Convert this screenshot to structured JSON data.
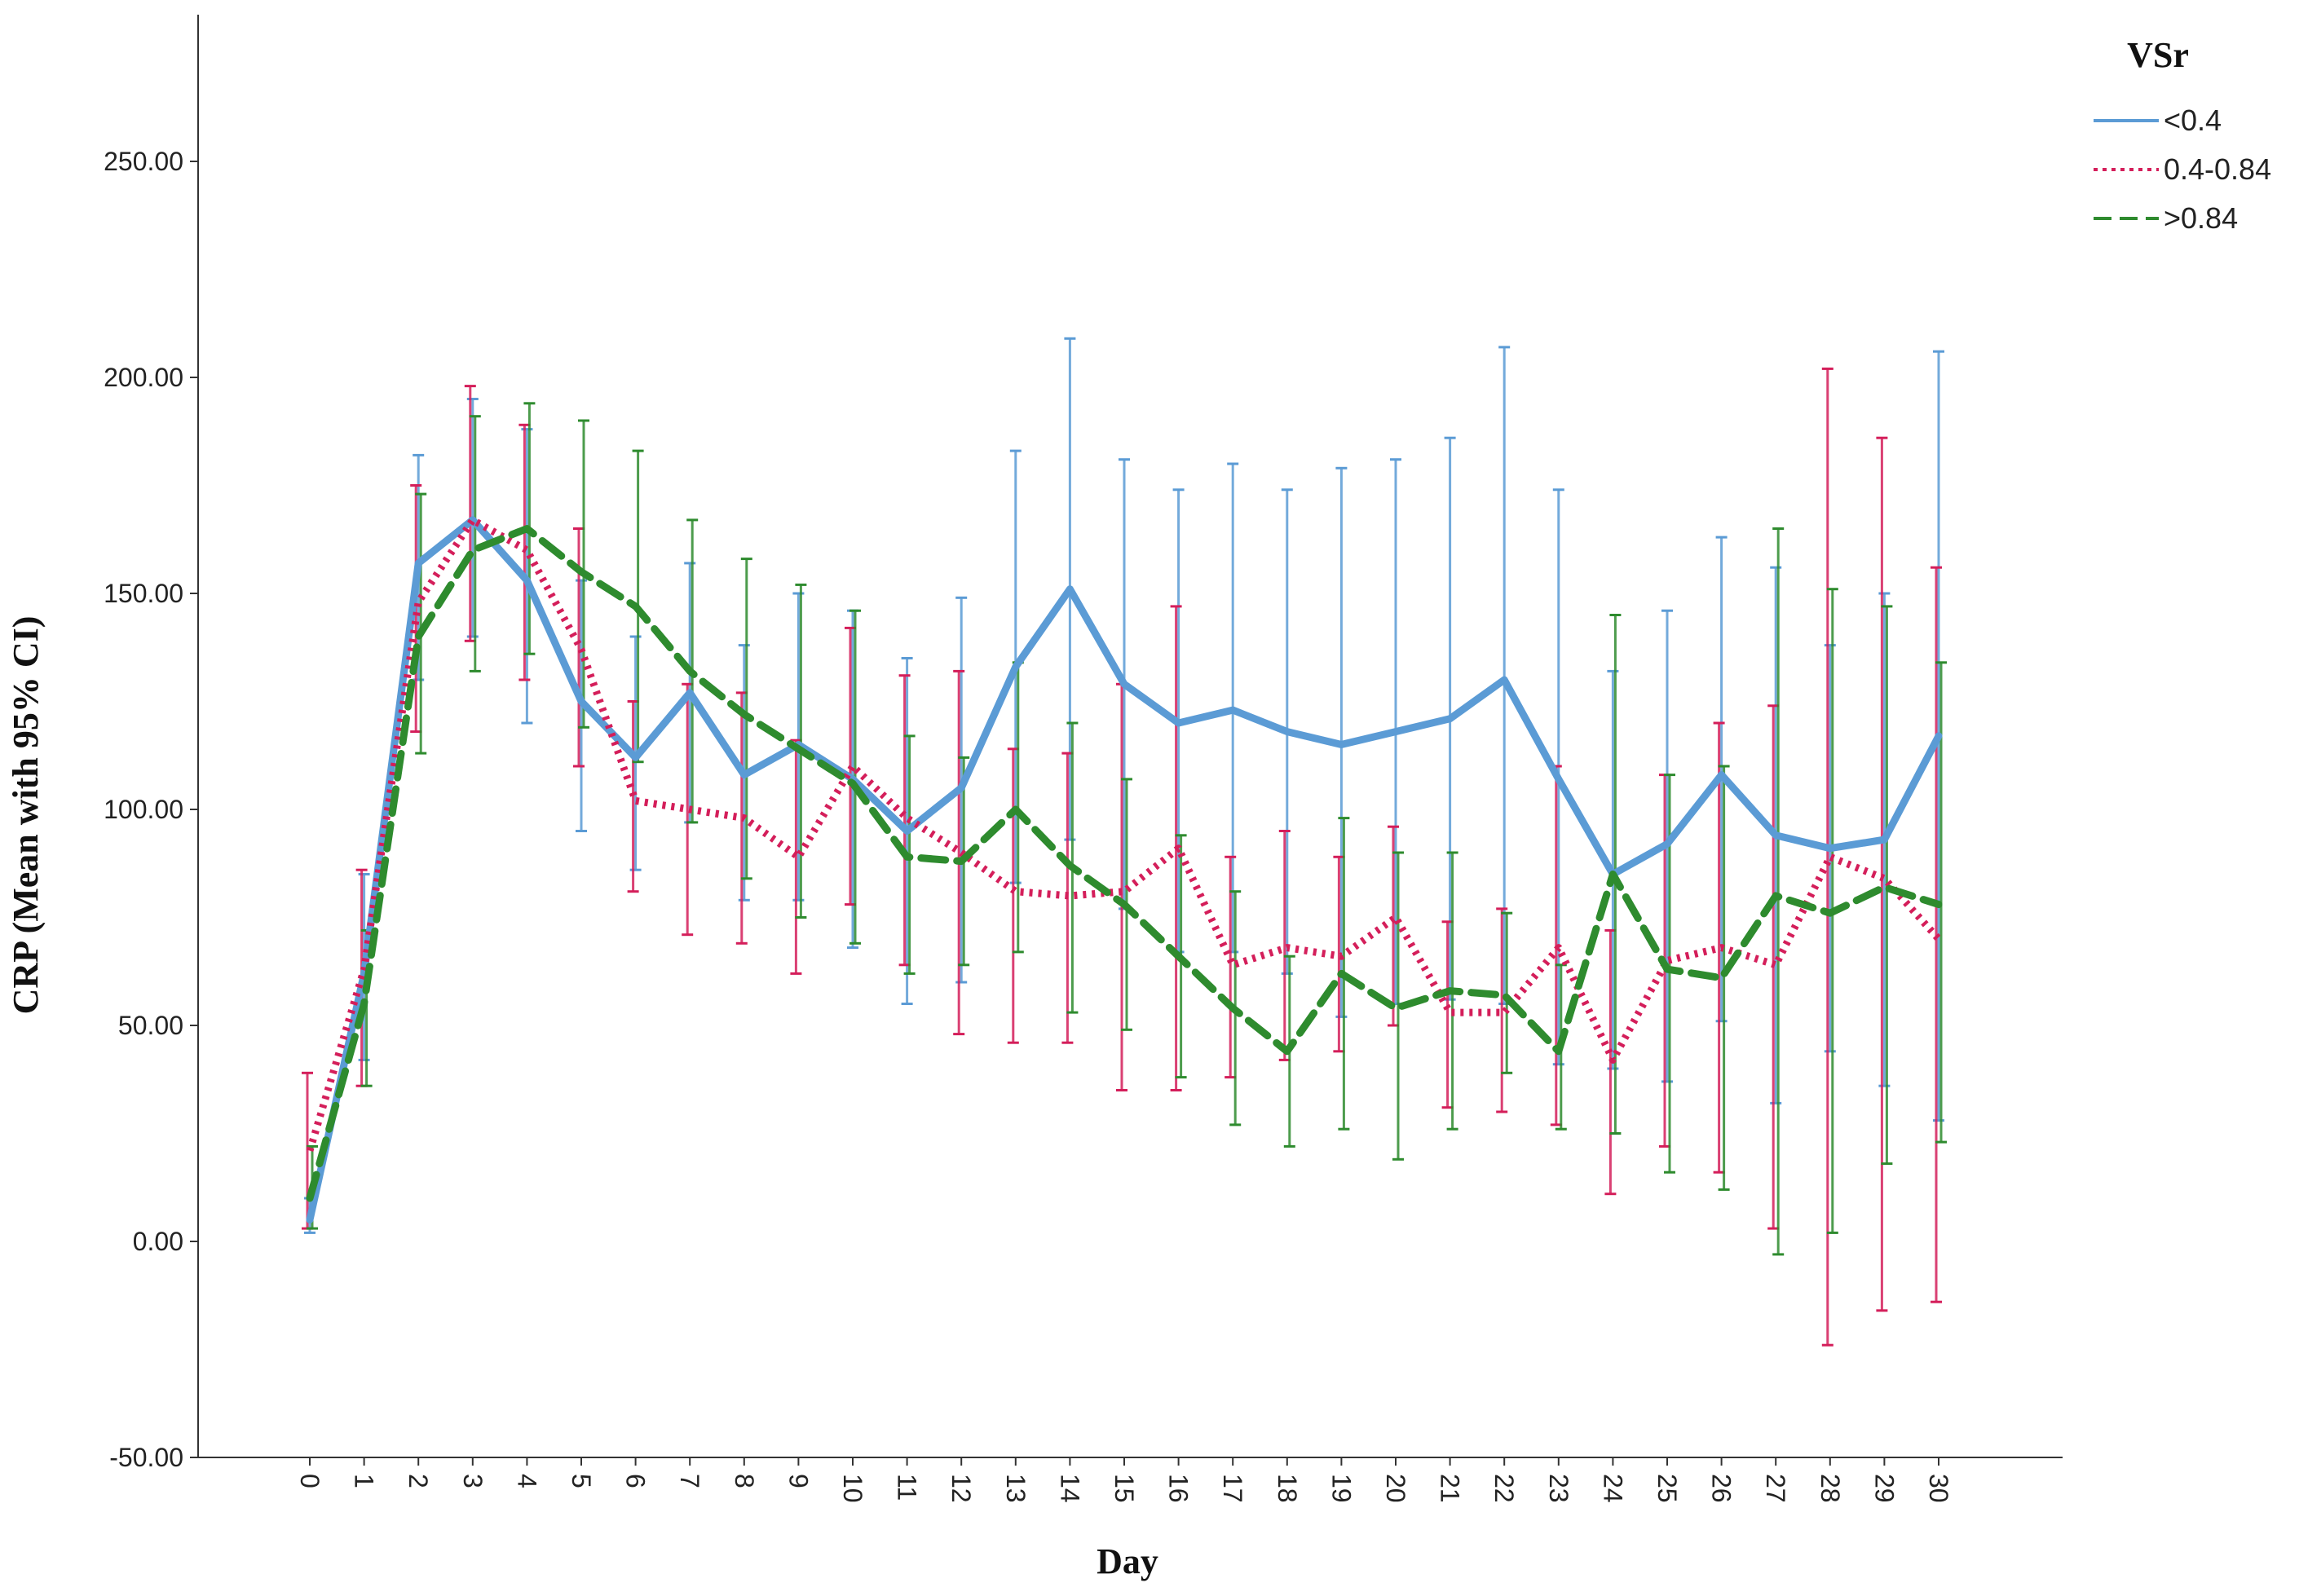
{
  "chart_data": {
    "type": "line",
    "ylabel": "CRP (Mean with 95% CI)",
    "xlabel": "Day",
    "legend_title": "VSr",
    "legend_position": "top-right",
    "ylim": [
      -50,
      280
    ],
    "y_ticks": [
      "-50.00",
      "0.00",
      "50.00",
      "100.00",
      "150.00",
      "200.00",
      "250.00"
    ],
    "y_tick_values": [
      -50,
      0,
      50,
      100,
      150,
      200,
      250
    ],
    "categories": [
      "0",
      "1",
      "2",
      "3",
      "4",
      "5",
      "6",
      "7",
      "8",
      "9",
      "10",
      "11",
      "12",
      "13",
      "14",
      "15",
      "16",
      "17",
      "18",
      "19",
      "20",
      "21",
      "22",
      "23",
      "24",
      "25",
      "26",
      "27",
      "28",
      "29",
      "30"
    ],
    "grid": false,
    "error_bars": "95% CI",
    "series": [
      {
        "name": "<0.4",
        "color": "#5b9bd5",
        "style": "solid",
        "mean": [
          5,
          62,
          157,
          167,
          153,
          125,
          112,
          127,
          108,
          115,
          107,
          95,
          105,
          133,
          151,
          129,
          120,
          123,
          118,
          115,
          118,
          121,
          130,
          107,
          85,
          92,
          108,
          94,
          91,
          93,
          117
        ],
        "lower": [
          2,
          42,
          130,
          140,
          120,
          95,
          86,
          97,
          79,
          79,
          68,
          55,
          60,
          83,
          93,
          77,
          67,
          67,
          62,
          52,
          55,
          56,
          55,
          41,
          40,
          37,
          51,
          32,
          44,
          36,
          28
        ],
        "upper": [
          10,
          85,
          182,
          195,
          188,
          153,
          140,
          157,
          138,
          150,
          146,
          135,
          149,
          183,
          209,
          181,
          174,
          180,
          174,
          179,
          181,
          186,
          207,
          174,
          132,
          146,
          163,
          156,
          138,
          150,
          206
        ]
      },
      {
        "name": "0.4-0.84",
        "color": "#d41e5a",
        "style": "dotted",
        "mean": [
          21,
          63,
          148,
          167,
          160,
          137,
          102,
          100,
          98,
          89,
          110,
          98,
          90,
          81,
          80,
          81,
          91,
          64,
          68,
          66,
          75,
          53,
          53,
          68,
          42,
          65,
          68,
          64,
          89,
          84,
          70
        ],
        "lower": [
          3,
          36,
          118,
          139,
          130,
          110,
          81,
          71,
          69,
          62,
          78,
          64,
          48,
          46,
          46,
          35,
          35,
          38,
          42,
          44,
          50,
          31,
          30,
          27,
          11,
          22,
          16,
          3,
          -24,
          -16,
          -14
        ],
        "upper": [
          39,
          86,
          175,
          198,
          189,
          165,
          125,
          129,
          127,
          116,
          142,
          131,
          132,
          114,
          113,
          129,
          147,
          89,
          95,
          89,
          96,
          74,
          77,
          110,
          72,
          108,
          120,
          124,
          202,
          186,
          156
        ]
      },
      {
        "name": ">0.84",
        "color": "#2e8b2e",
        "style": "dashed",
        "mean": [
          10,
          55,
          140,
          160,
          165,
          155,
          147,
          132,
          122,
          114,
          106,
          89,
          88,
          100,
          87,
          78,
          66,
          54,
          44,
          62,
          54,
          58,
          57,
          44,
          85,
          63,
          61,
          80,
          76,
          82,
          78
        ],
        "lower": [
          3,
          36,
          113,
          132,
          136,
          119,
          111,
          97,
          84,
          75,
          69,
          62,
          64,
          67,
          53,
          49,
          38,
          27,
          22,
          26,
          19,
          26,
          39,
          26,
          25,
          16,
          12,
          -3,
          2,
          18,
          23
        ],
        "upper": [
          22,
          72,
          173,
          191,
          194,
          190,
          183,
          167,
          158,
          152,
          146,
          117,
          112,
          134,
          120,
          107,
          94,
          81,
          66,
          98,
          90,
          90,
          76,
          64,
          145,
          108,
          110,
          165,
          151,
          147,
          134
        ]
      }
    ]
  }
}
